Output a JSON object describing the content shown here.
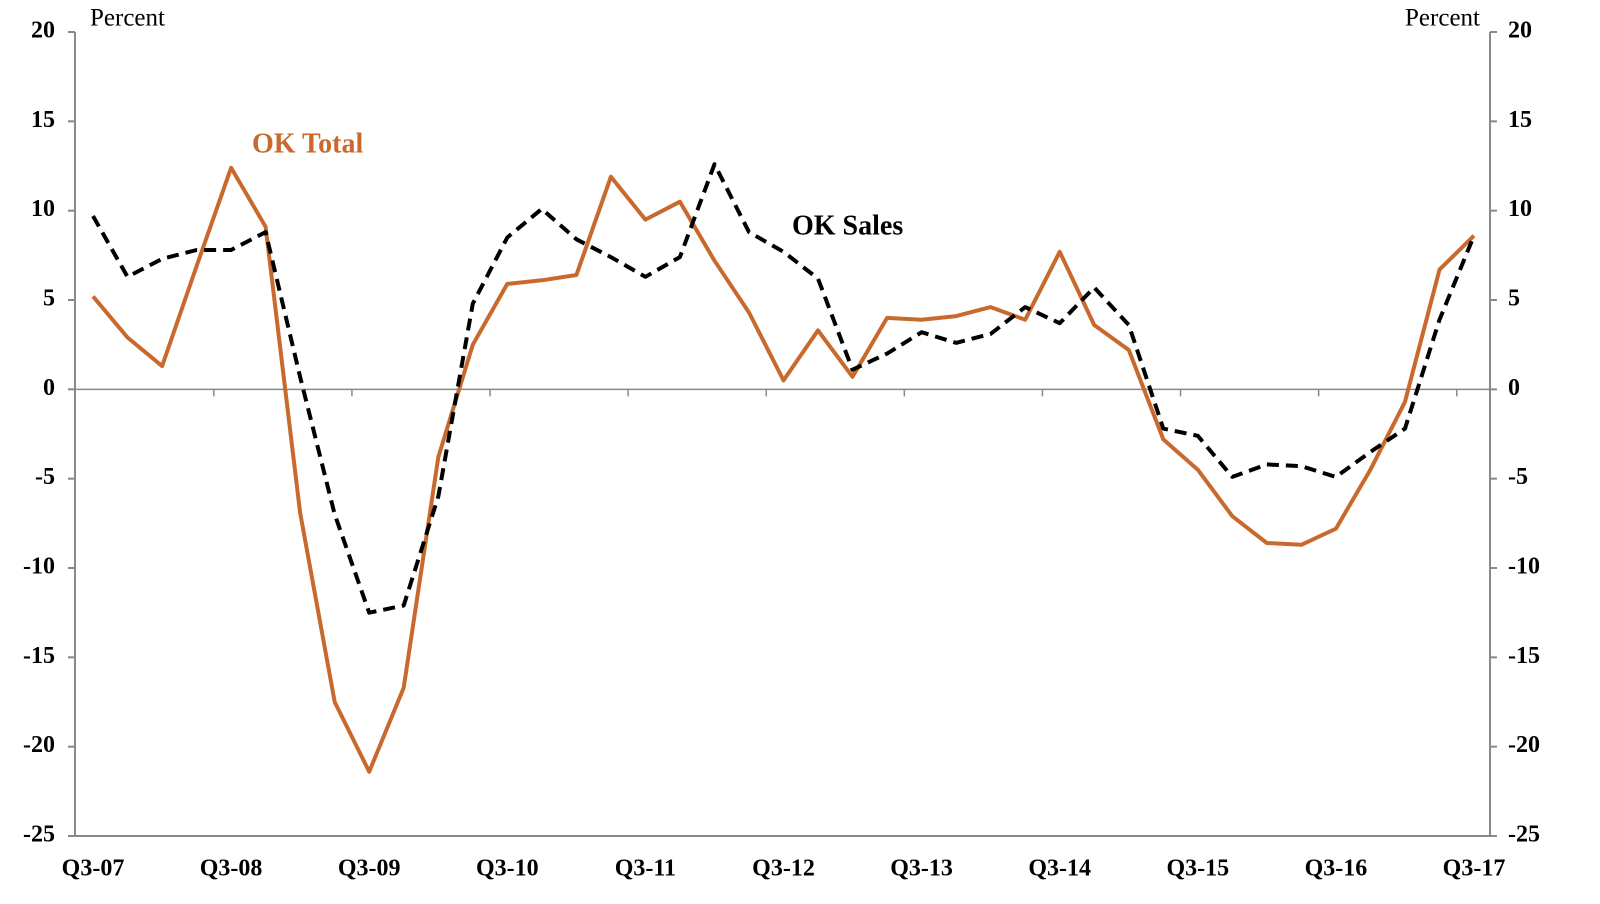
{
  "chart_data": {
    "type": "line",
    "y_label": "Percent",
    "y2_label": "Percent",
    "categories": [
      "Q3-07",
      null,
      null,
      null,
      "Q3-08",
      null,
      null,
      null,
      "Q3-09",
      null,
      null,
      null,
      "Q3-10",
      null,
      null,
      null,
      "Q3-11",
      null,
      null,
      null,
      "Q3-12",
      null,
      null,
      null,
      "Q3-13",
      null,
      null,
      null,
      "Q3-14",
      null,
      null,
      null,
      "Q3-15",
      null,
      null,
      null,
      "Q3-16",
      null,
      null,
      null,
      "Q3-17"
    ],
    "series": [
      {
        "name": "OK Total",
        "color": "#c8692e",
        "dash": false,
        "values": [
          5.2,
          2.9,
          1.3,
          6.9,
          12.4,
          9.1,
          -6.9,
          -17.5,
          -21.4,
          -16.7,
          -3.8,
          2.5,
          5.9,
          6.1,
          6.4,
          11.9,
          9.5,
          10.5,
          7.2,
          4.3,
          0.5,
          3.3,
          0.7,
          4.0,
          3.9,
          4.1,
          4.6,
          3.9,
          7.7,
          3.6,
          2.2,
          -2.8,
          -4.5,
          -7.1,
          -8.6,
          -8.7,
          -7.8,
          -4.5,
          -0.7,
          6.7,
          8.6
        ]
      },
      {
        "name": "OK Sales",
        "color": "#000000",
        "dash": true,
        "values": [
          9.7,
          6.3,
          7.3,
          7.8,
          7.8,
          8.8,
          0.7,
          -7.0,
          -12.5,
          -12.1,
          -6.0,
          4.8,
          8.5,
          10.1,
          8.4,
          7.4,
          6.3,
          7.4,
          12.6,
          8.8,
          7.7,
          6.2,
          1.1,
          2.0,
          3.2,
          2.6,
          3.1,
          4.6,
          3.7,
          5.7,
          3.6,
          -2.2,
          -2.6,
          -4.9,
          -4.2,
          -4.3,
          -4.9,
          -3.5,
          -2.2,
          3.9,
          8.6
        ]
      }
    ],
    "ylim": [
      -25,
      20
    ],
    "yticks": [
      -25,
      -20,
      -15,
      -10,
      -5,
      0,
      5,
      10,
      15,
      20
    ],
    "y2lim": [
      -25,
      20
    ],
    "y2ticks": [
      -25,
      -20,
      -15,
      -10,
      -5,
      0,
      5,
      10,
      15,
      20
    ]
  }
}
